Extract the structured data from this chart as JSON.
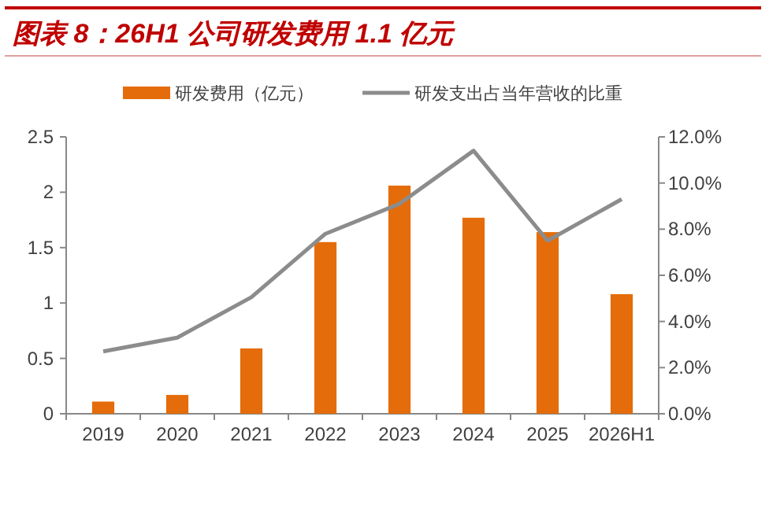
{
  "chart_data": {
    "type": "bar",
    "title": "图表 8：26H1 公司研发费用 1.1 亿元",
    "categories": [
      "2019",
      "2020",
      "2021",
      "2022",
      "2023",
      "2024",
      "2025",
      "2026H1"
    ],
    "series": [
      {
        "name": "研发费用（亿元）",
        "color": "#e46c0a",
        "values": [
          0.11,
          0.17,
          0.59,
          1.55,
          2.06,
          1.77,
          1.64,
          1.08
        ]
      },
      {
        "name": "研发支出占当年营收的比重",
        "type": "line",
        "axis": "y2",
        "color": "#8c8c8c",
        "values": [
          2.7,
          3.3,
          5.05,
          7.8,
          9.1,
          11.4,
          7.5,
          9.3
        ]
      }
    ],
    "ylim": [
      0,
      2.5
    ],
    "yticks": [
      0,
      0.5,
      1,
      1.5,
      2,
      2.5
    ],
    "y2lim": [
      0,
      12
    ],
    "y2ticks": [
      {
        "value": 0,
        "label": "0.0%"
      },
      {
        "value": 2,
        "label": "2.0%"
      },
      {
        "value": 4,
        "label": "4.0%"
      },
      {
        "value": 6,
        "label": "6.0%"
      },
      {
        "value": 8,
        "label": "8.0%"
      },
      {
        "value": 10,
        "label": "10.0%"
      },
      {
        "value": 12,
        "label": "12.0%"
      }
    ],
    "legend": "top",
    "grid": false,
    "marker": "none"
  }
}
